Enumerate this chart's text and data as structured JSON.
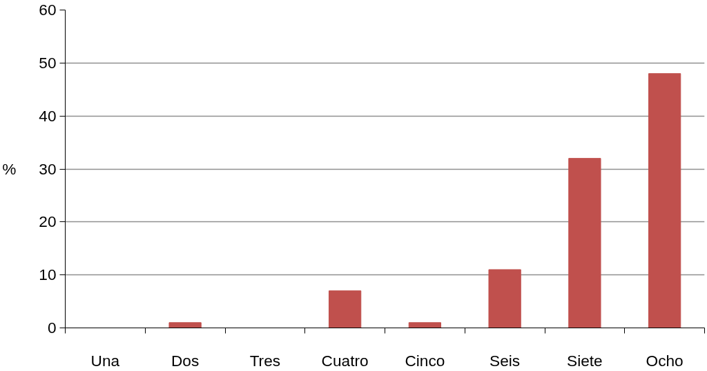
{
  "chart_data": {
    "type": "bar",
    "ylabel": "%",
    "categories": [
      "Una",
      "Dos",
      "Tres",
      "Cuatro",
      "Cinco",
      "Seis",
      "Siete",
      "Ocho"
    ],
    "values": [
      0,
      1,
      0,
      7,
      1,
      11,
      32,
      48
    ],
    "color": "#c0504d",
    "ylim": [
      0,
      60
    ],
    "yticks": [
      0,
      10,
      20,
      30,
      40,
      50,
      60
    ],
    "grid": "y"
  }
}
